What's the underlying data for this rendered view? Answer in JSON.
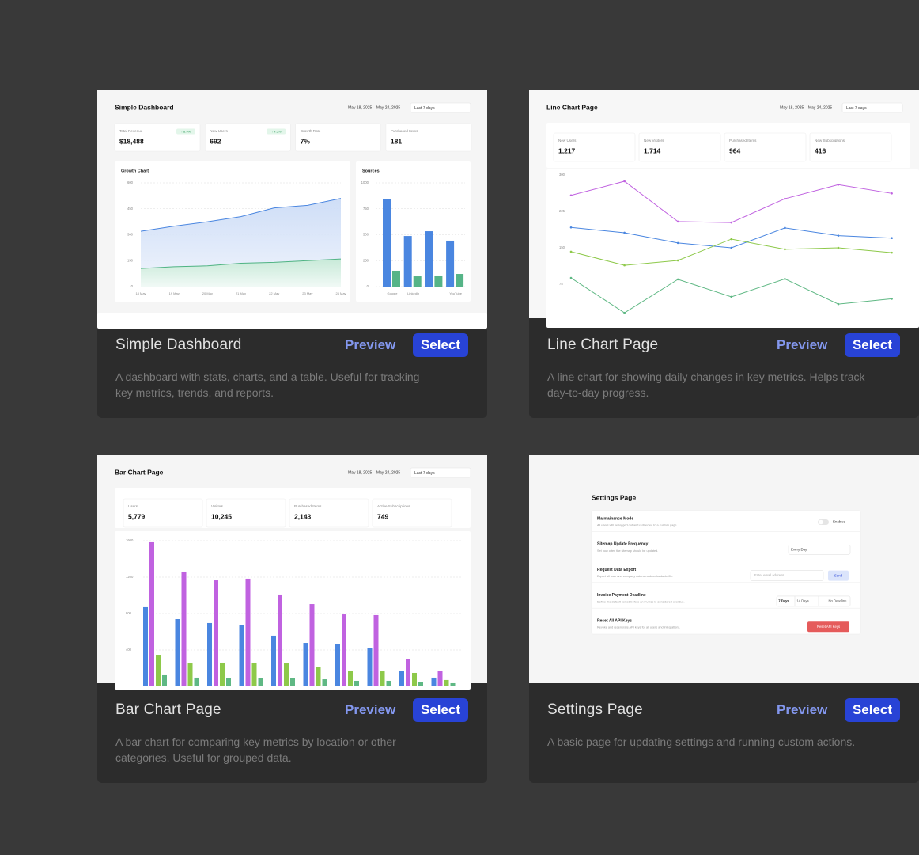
{
  "cards": [
    {
      "title": "Simple Dashboard",
      "preview": "Preview",
      "select": "Select",
      "description_lines": [
        "A dashboard with stats, charts, and a table. Useful for tracking",
        "key metrics, trends, and reports."
      ],
      "thumbnail": {
        "title": "Simple Dashboard",
        "date_range": "May 18, 2025 – May 24, 2025",
        "period": "Last 7 days",
        "stats": [
          {
            "label": "Total Revenue",
            "badge": "↑ 8.9%",
            "value": "$18,488"
          },
          {
            "label": "New Users",
            "badge": "↑ 4.5%",
            "value": "692"
          },
          {
            "label": "Growth Rate",
            "value": "7%"
          },
          {
            "label": "Purchased Items",
            "value": "181"
          }
        ],
        "charts": [
          {
            "type": "area",
            "title": "Growth Chart",
            "categories": [
              "18 May",
              "19 May",
              "20 May",
              "21 May",
              "22 May",
              "23 May",
              "24 May"
            ],
            "series": [
              {
                "color": "#4a86e0",
                "values": [
                  320,
                  350,
                  375,
                  405,
                  455,
                  470,
                  510
                ]
              },
              {
                "color": "#4fb383",
                "values": [
                  105,
                  115,
                  120,
                  135,
                  140,
                  150,
                  160
                ]
              }
            ],
            "ylim": [
              0,
              600
            ],
            "yticks": [
              0,
              150,
              300,
              450,
              600
            ],
            "grid": true
          },
          {
            "type": "bar",
            "title": "Sources",
            "categories": [
              "Google",
              "LinkedIn",
              null,
              "YouTube"
            ],
            "series": [
              {
                "color": "#4a86e0",
                "values": [
                  847,
                  488,
                  534,
                  443
                ]
              },
              {
                "color": "#55b487",
                "values": [
                  153,
                  99,
                  107,
                  122
                ]
              }
            ],
            "ylim": [
              0,
              1000
            ],
            "yticks": [
              0,
              250,
              500,
              750,
              1000
            ],
            "grid": true
          }
        ]
      }
    },
    {
      "title": "Line Chart Page",
      "preview": "Preview",
      "select": "Select",
      "description_lines": [
        "A line chart for showing daily changes in key metrics. Helps track",
        "day-to-day progress."
      ],
      "thumbnail": {
        "title": "Line Chart Page",
        "date_range": "May 18, 2025 – May 24, 2025",
        "period": "Last 7 days",
        "stats": [
          {
            "label": "New Users",
            "value": "1,217"
          },
          {
            "label": "New Visitors",
            "value": "1,714"
          },
          {
            "label": "Purchased Items",
            "value": "964"
          },
          {
            "label": "New Subscriptions",
            "value": "416"
          }
        ],
        "charts": [
          {
            "type": "line",
            "series": [
              {
                "color": "#c062e0",
                "values": [
                  258,
                  287,
                  204,
                  202,
                  251,
                  280,
                  262
                ]
              },
              {
                "color": "#4a86e0",
                "values": [
                  192,
                  181,
                  160,
                  150,
                  191,
                  175,
                  170
                ]
              },
              {
                "color": "#8ec94a",
                "values": [
                  142,
                  114,
                  124,
                  168,
                  147,
                  150,
                  140
                ]
              },
              {
                "color": "#5fb884",
                "values": [
                  88,
                  16,
                  85,
                  49,
                  86,
                  34,
                  45
                ]
              }
            ],
            "ylim": [
              0,
              300
            ],
            "yticks": [
              75,
              150,
              225,
              300
            ],
            "grid": false
          }
        ]
      }
    },
    {
      "title": "Bar Chart Page",
      "preview": "Preview",
      "select": "Select",
      "description_lines": [
        "A bar chart for comparing key metrics by location or other",
        "categories. Useful for grouped data."
      ],
      "thumbnail": {
        "title": "Bar Chart Page",
        "date_range": "May 18, 2025 – May 24, 2025",
        "period": "Last 7 days",
        "stats": [
          {
            "label": "Users",
            "value": "5,779"
          },
          {
            "label": "Visitors",
            "value": "10,245"
          },
          {
            "label": "Purchased Items",
            "value": "2,143"
          },
          {
            "label": "Active Subscriptions",
            "value": "749"
          }
        ],
        "charts": [
          {
            "type": "bar",
            "series": [
              {
                "color": "#4a86e0",
                "values": [
                  870,
                  739,
                  696,
                  670,
                  557,
                  478,
                  461,
                  426,
                  174,
                  96
                ]
              },
              {
                "color": "#c062e0",
                "values": [
                  1583,
                  1261,
                  1165,
                  1183,
                  1009,
                  904,
                  791,
                  783,
                  304,
                  174
                ]
              },
              {
                "color": "#8ec94a",
                "values": [
                  339,
                  252,
                  261,
                  261,
                  252,
                  217,
                  174,
                  165,
                  148,
                  70
                ]
              },
              {
                "color": "#5fb884",
                "values": [
                  122,
                  96,
                  87,
                  87,
                  87,
                  78,
                  61,
                  61,
                  52,
                  35
                ]
              }
            ],
            "ylim": [
              0,
              1600
            ],
            "yticks": [
              400,
              800,
              1200,
              1600
            ],
            "grid": true
          }
        ]
      }
    },
    {
      "title": "Settings Page",
      "preview": "Preview",
      "select": "Select",
      "description_lines": [
        "A basic page for updating settings and running custom actions."
      ],
      "thumbnail": {
        "title": "Settings Page",
        "rows": [
          {
            "title": "Maintainance Mode",
            "description": "All users will be logged out and redirected to a custom page.",
            "toggle_label": "Enabled"
          },
          {
            "title": "Sitemap Update Frequency",
            "description": "Set how often the sitemap should be updated.",
            "select": "Every Day"
          },
          {
            "title": "Request Data Export",
            "description": "Export all user and company data as a downloadable file.",
            "input_placeholder": "Enter email address",
            "button": "Send"
          },
          {
            "title": "Invoice Payment Deadline",
            "description": "Define the default period before an invoice is considered overdue.",
            "options": [
              "7 Days",
              "14 Days",
              "No Deadline"
            ]
          },
          {
            "title": "Reset All API Keys",
            "description": "Revoke and regenerate API keys for all users and integrations.",
            "danger_button": "Reset API Keys"
          }
        ]
      }
    }
  ]
}
